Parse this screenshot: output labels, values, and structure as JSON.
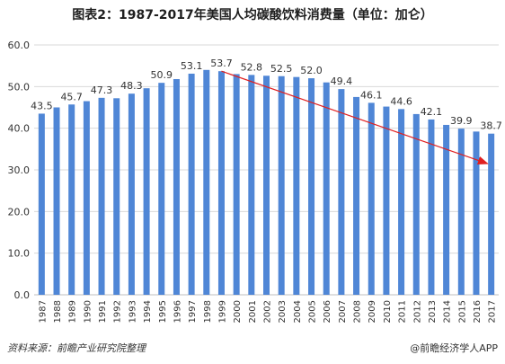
{
  "title": "图表2：1987-2017年美国人均碳酸饮料消费量（单位：加仑）",
  "source": "资料来源：前瞻产业研究院整理",
  "copyright": "@前瞻经济学人APP",
  "colors": {
    "bar": "#4f86d6",
    "trend": "#e02020",
    "grid": "#d9d9d9",
    "text": "#333333"
  },
  "chart_data": {
    "type": "bar",
    "categories": [
      "1987",
      "1988",
      "1989",
      "1990",
      "1991",
      "1992",
      "1993",
      "1994",
      "1995",
      "1996",
      "1997",
      "1998",
      "1999",
      "2000",
      "2001",
      "2002",
      "2003",
      "2004",
      "2005",
      "2006",
      "2007",
      "2008",
      "2009",
      "2010",
      "2011",
      "2012",
      "2013",
      "2014",
      "2015",
      "2016",
      "2017"
    ],
    "values": [
      43.5,
      45.0,
      45.7,
      46.5,
      47.3,
      47.2,
      48.3,
      49.6,
      50.9,
      51.8,
      53.1,
      54.0,
      53.7,
      53.0,
      52.8,
      52.6,
      52.5,
      52.3,
      52.0,
      51.0,
      49.4,
      47.5,
      46.1,
      45.2,
      44.6,
      43.4,
      42.1,
      40.8,
      39.9,
      39.2,
      38.7
    ],
    "labels": [
      {
        "category": "1987",
        "text": "43.5"
      },
      {
        "category": "1989",
        "text": "45.7"
      },
      {
        "category": "1991",
        "text": "47.3"
      },
      {
        "category": "1993",
        "text": "48.3"
      },
      {
        "category": "1995",
        "text": "50.9"
      },
      {
        "category": "1997",
        "text": "53.1"
      },
      {
        "category": "1999",
        "text": "53.7"
      },
      {
        "category": "2001",
        "text": "52.8"
      },
      {
        "category": "2003",
        "text": "52.5"
      },
      {
        "category": "2005",
        "text": "52.0"
      },
      {
        "category": "2007",
        "text": "49.4"
      },
      {
        "category": "2009",
        "text": "46.1"
      },
      {
        "category": "2011",
        "text": "44.6"
      },
      {
        "category": "2013",
        "text": "42.1"
      },
      {
        "category": "2015",
        "text": "39.9"
      },
      {
        "category": "2017",
        "text": "38.7"
      }
    ],
    "yticks": [
      "0.0",
      "10.0",
      "20.0",
      "30.0",
      "40.0",
      "50.0",
      "60.0"
    ],
    "ylim": [
      0,
      60
    ],
    "grid": true,
    "trend_arrow": {
      "from": {
        "category": "1999",
        "y": 53.7
      },
      "to": {
        "category": "2017",
        "y": 31.5
      }
    }
  }
}
